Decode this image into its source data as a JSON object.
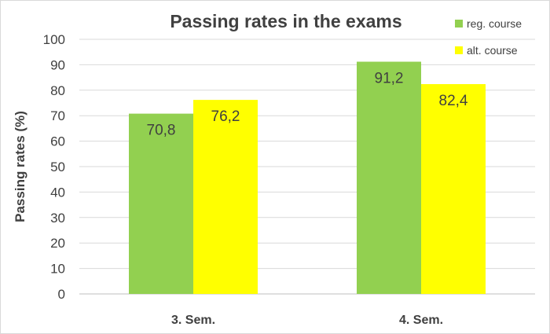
{
  "chart_data": {
    "type": "bar",
    "title": "Passing rates in the exams",
    "xlabel": "",
    "ylabel": "Passing rates (%)",
    "ylim": [
      0,
      100
    ],
    "yticks": [
      0,
      10,
      20,
      30,
      40,
      50,
      60,
      70,
      80,
      90,
      100
    ],
    "categories": [
      "3. Sem.",
      "4. Sem."
    ],
    "series": [
      {
        "name": "reg. course",
        "color": "#92d050",
        "values": [
          70.8,
          91.2
        ],
        "labels": [
          "70,8",
          "91,2"
        ]
      },
      {
        "name": "alt. course",
        "color": "#ffff00",
        "values": [
          76.2,
          82.4
        ],
        "labels": [
          "76,2",
          "82,4"
        ]
      }
    ],
    "grid": true,
    "legend": "top-right"
  }
}
